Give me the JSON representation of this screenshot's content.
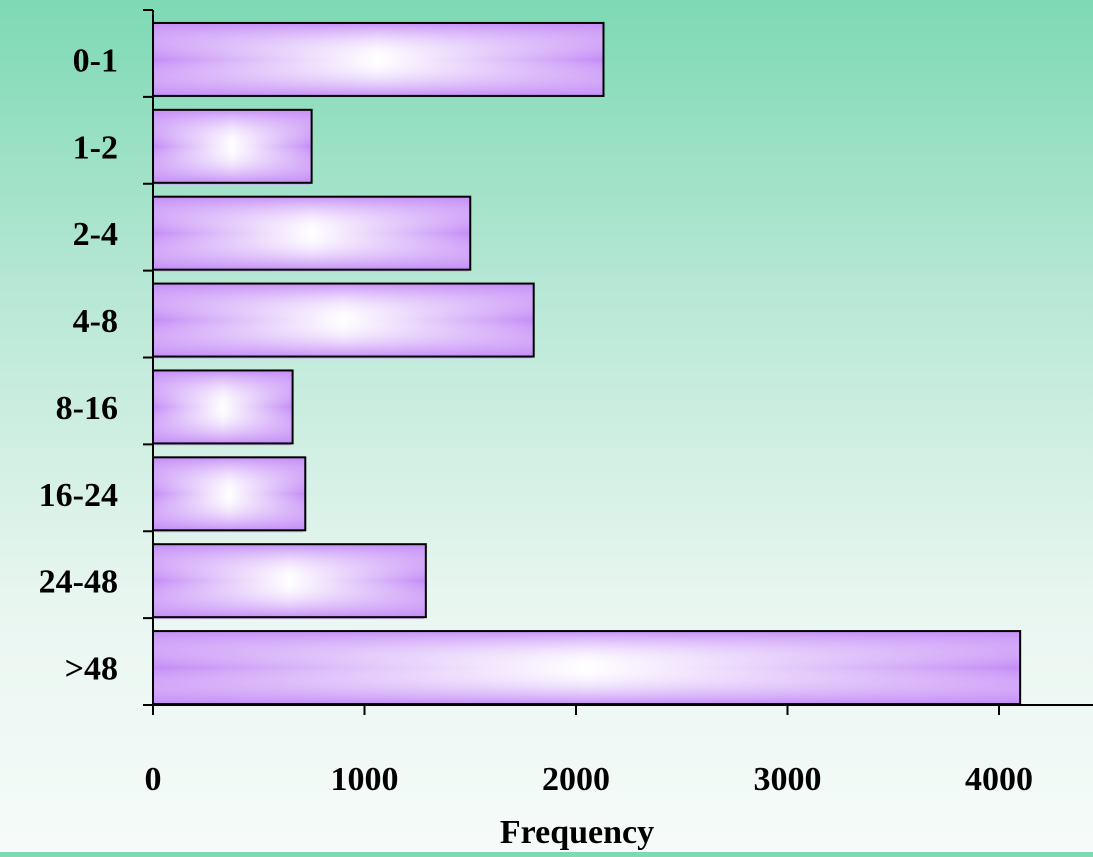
{
  "chart_data": {
    "type": "bar",
    "orientation": "horizontal",
    "categories": [
      "0-1",
      "1-2",
      "2-4",
      "4-8",
      "8-16",
      "16-24",
      "24-48",
      ">48"
    ],
    "values": [
      2130,
      750,
      1500,
      1800,
      660,
      720,
      1290,
      4100
    ],
    "xlabel": "Frequency",
    "ylabel": "",
    "xlim": [
      0,
      4500
    ],
    "xticks": [
      0,
      1000,
      2000,
      3000,
      4000
    ],
    "xtick_labels": [
      "0",
      "1000",
      "2000",
      "3000",
      "4000"
    ],
    "grid": false,
    "colors": {
      "bar_edge": "#c48cf6",
      "bar_center": "#ffffff",
      "bar_outline": "#000000",
      "bar_shadow": "#c9a8f2"
    }
  }
}
